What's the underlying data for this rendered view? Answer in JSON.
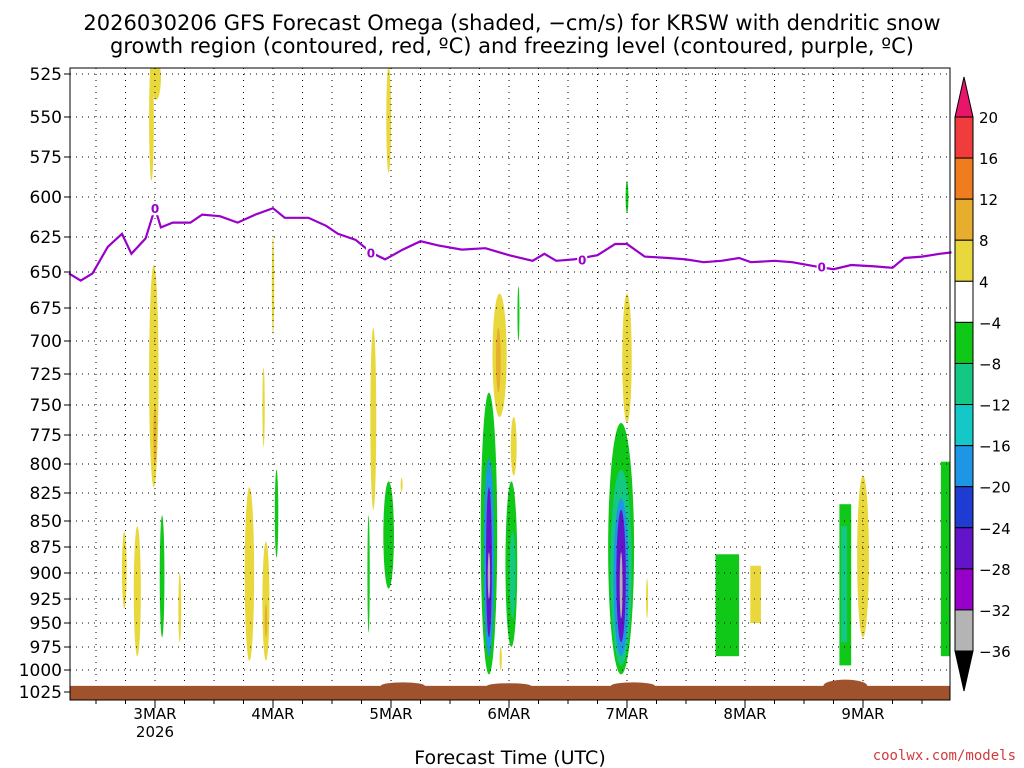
{
  "chart_data": {
    "type": "heatmap",
    "title": "2026030206 GFS Forecast Omega (shaded, −cm/s) for KRSW with dendritic snow",
    "title_line2": "growth region (contoured, red, ºC) and freezing level (contoured, purple, ºC)",
    "xlabel": "Forecast Time (UTC)",
    "credit": "coolwx.com/models",
    "x_range": [
      2.25,
      9.75
    ],
    "x_ticks": [
      {
        "value": 3,
        "label": "3MAR",
        "sublabel": "2026"
      },
      {
        "value": 4,
        "label": "4MAR",
        "sublabel": ""
      },
      {
        "value": 5,
        "label": "5MAR",
        "sublabel": ""
      },
      {
        "value": 6,
        "label": "6MAR",
        "sublabel": ""
      },
      {
        "value": 7,
        "label": "7MAR",
        "sublabel": ""
      },
      {
        "value": 8,
        "label": "8MAR",
        "sublabel": ""
      },
      {
        "value": 9,
        "label": "9MAR",
        "sublabel": ""
      }
    ],
    "y_ticks": [
      "525",
      "550",
      "575",
      "600",
      "625",
      "650",
      "675",
      "700",
      "725",
      "750",
      "775",
      "800",
      "825",
      "850",
      "875",
      "900",
      "925",
      "950",
      "975",
      "1000",
      "1025"
    ],
    "y_values": [
      525,
      550,
      575,
      600,
      625,
      650,
      675,
      700,
      725,
      750,
      775,
      800,
      825,
      850,
      875,
      900,
      925,
      950,
      975,
      1000,
      1025
    ],
    "colorbar": {
      "levels": [
        {
          "label": "20",
          "color": "#e8156b"
        },
        {
          "label": "16",
          "color": "#f03c3c"
        },
        {
          "label": "12",
          "color": "#f07c20"
        },
        {
          "label": "8",
          "color": "#e6ae2c"
        },
        {
          "label": "4",
          "color": "#e8d83c"
        },
        {
          "label": "−4",
          "color": "#ffffff"
        },
        {
          "label": "−8",
          "color": "#10c818"
        },
        {
          "label": "−12",
          "color": "#14c884"
        },
        {
          "label": "−16",
          "color": "#14c8c8"
        },
        {
          "label": "−20",
          "color": "#1e96e6"
        },
        {
          "label": "−24",
          "color": "#1e3cd2"
        },
        {
          "label": "−28",
          "color": "#6414c8"
        },
        {
          "label": "−32",
          "color": "#9600c8"
        },
        {
          "label": "−36",
          "color": "#b4b4b4"
        }
      ],
      "bottom_color": "#000000"
    },
    "freezing_level_label": "0",
    "freezing_level": [
      [
        2.27,
        651
      ],
      [
        2.37,
        656
      ],
      [
        2.47,
        651
      ],
      [
        2.6,
        632
      ],
      [
        2.72,
        623
      ],
      [
        2.8,
        637
      ],
      [
        2.92,
        626
      ],
      [
        3.0,
        607
      ],
      [
        3.05,
        619
      ],
      [
        3.15,
        616
      ],
      [
        3.3,
        616
      ],
      [
        3.4,
        611
      ],
      [
        3.55,
        612
      ],
      [
        3.7,
        616
      ],
      [
        3.85,
        611
      ],
      [
        4.0,
        607
      ],
      [
        4.1,
        613
      ],
      [
        4.3,
        613
      ],
      [
        4.45,
        618
      ],
      [
        4.55,
        623
      ],
      [
        4.7,
        627
      ],
      [
        4.83,
        636
      ],
      [
        4.95,
        641
      ],
      [
        5.1,
        634
      ],
      [
        5.25,
        628
      ],
      [
        5.4,
        631
      ],
      [
        5.6,
        634
      ],
      [
        5.8,
        633
      ],
      [
        6.0,
        638
      ],
      [
        6.2,
        642
      ],
      [
        6.3,
        637
      ],
      [
        6.4,
        642
      ],
      [
        6.55,
        641
      ],
      [
        6.75,
        638
      ],
      [
        6.9,
        630
      ],
      [
        7.0,
        630
      ],
      [
        7.15,
        639
      ],
      [
        7.35,
        640
      ],
      [
        7.5,
        641
      ],
      [
        7.65,
        643
      ],
      [
        7.8,
        642
      ],
      [
        7.95,
        640
      ],
      [
        8.05,
        643
      ],
      [
        8.25,
        642
      ],
      [
        8.4,
        643
      ],
      [
        8.6,
        646
      ],
      [
        8.75,
        648
      ],
      [
        8.9,
        645
      ],
      [
        9.1,
        646
      ],
      [
        9.25,
        647
      ],
      [
        9.35,
        640
      ],
      [
        9.5,
        639
      ],
      [
        9.65,
        637
      ],
      [
        9.75,
        636
      ]
    ],
    "omega_regions": [
      {
        "level": 4,
        "x_center": 2.97,
        "x_halfwidth": 0.02,
        "p_top": 515,
        "p_bottom": 590
      },
      {
        "level": 4,
        "x_center": 3.01,
        "x_halfwidth": 0.04,
        "p_top": 515,
        "p_bottom": 540
      },
      {
        "level": 4,
        "x_center": 2.99,
        "x_halfwidth": 0.04,
        "p_top": 645,
        "p_bottom": 820
      },
      {
        "level": 8,
        "x_center": 3.0,
        "x_halfwidth": 0.015,
        "p_top": 750,
        "p_bottom": 800
      },
      {
        "level": 4,
        "x_center": 2.74,
        "x_halfwidth": 0.02,
        "p_top": 860,
        "p_bottom": 935
      },
      {
        "level": 4,
        "x_center": 2.85,
        "x_halfwidth": 0.03,
        "p_top": 855,
        "p_bottom": 985
      },
      {
        "level": -8,
        "x_center": 3.06,
        "x_halfwidth": 0.02,
        "p_top": 845,
        "p_bottom": 965
      },
      {
        "level": 4,
        "x_center": 3.21,
        "x_halfwidth": 0.012,
        "p_top": 900,
        "p_bottom": 970
      },
      {
        "level": 4,
        "x_center": 3.8,
        "x_halfwidth": 0.04,
        "p_top": 820,
        "p_bottom": 990
      },
      {
        "level": 4,
        "x_center": 3.94,
        "x_halfwidth": 0.03,
        "p_top": 870,
        "p_bottom": 990
      },
      {
        "level": 8,
        "x_center": 3.94,
        "x_halfwidth": 0.01,
        "p_top": 930,
        "p_bottom": 965
      },
      {
        "level": -8,
        "x_center": 4.03,
        "x_halfwidth": 0.015,
        "p_top": 805,
        "p_bottom": 885
      },
      {
        "level": 4,
        "x_center": 4.0,
        "x_halfwidth": 0.01,
        "p_top": 625,
        "p_bottom": 695
      },
      {
        "level": 4,
        "x_center": 3.92,
        "x_halfwidth": 0.01,
        "p_top": 720,
        "p_bottom": 785
      },
      {
        "level": 4,
        "x_center": 4.98,
        "x_halfwidth": 0.02,
        "p_top": 520,
        "p_bottom": 585
      },
      {
        "level": 4,
        "x_center": 4.85,
        "x_halfwidth": 0.025,
        "p_top": 690,
        "p_bottom": 840
      },
      {
        "level": -8,
        "x_center": 4.81,
        "x_halfwidth": 0.01,
        "p_top": 845,
        "p_bottom": 960
      },
      {
        "level": -8,
        "x_center": 4.98,
        "x_halfwidth": 0.045,
        "p_top": 815,
        "p_bottom": 915
      },
      {
        "level": 4,
        "x_center": 5.09,
        "x_halfwidth": 0.006,
        "p_top": 812,
        "p_bottom": 824
      },
      {
        "level": 4,
        "x_center": 5.92,
        "x_halfwidth": 0.06,
        "p_top": 665,
        "p_bottom": 760
      },
      {
        "level": 8,
        "x_center": 5.91,
        "x_halfwidth": 0.02,
        "p_top": 690,
        "p_bottom": 740
      },
      {
        "level": 4,
        "x_center": 6.04,
        "x_halfwidth": 0.025,
        "p_top": 760,
        "p_bottom": 810
      },
      {
        "level": -8,
        "x_center": 5.83,
        "x_halfwidth": 0.07,
        "p_top": 740,
        "p_bottom": 1005
      },
      {
        "level": -20,
        "x_center": 5.83,
        "x_halfwidth": 0.045,
        "p_top": 795,
        "p_bottom": 985
      },
      {
        "level": -28,
        "x_center": 5.83,
        "x_halfwidth": 0.025,
        "p_top": 820,
        "p_bottom": 965
      },
      {
        "level": -36,
        "x_center": 5.83,
        "x_halfwidth": 0.01,
        "p_top": 880,
        "p_bottom": 925
      },
      {
        "level": -8,
        "x_center": 6.02,
        "x_halfwidth": 0.05,
        "p_top": 815,
        "p_bottom": 975
      },
      {
        "level": -12,
        "x_center": 6.03,
        "x_halfwidth": 0.025,
        "p_top": 860,
        "p_bottom": 945
      },
      {
        "level": -8,
        "x_center": 6.08,
        "x_halfwidth": 0.008,
        "p_top": 660,
        "p_bottom": 700
      },
      {
        "level": 4,
        "x_center": 5.93,
        "x_halfwidth": 0.01,
        "p_top": 975,
        "p_bottom": 1000
      },
      {
        "level": -8,
        "x_center": 7.0,
        "x_halfwidth": 0.012,
        "p_top": 590,
        "p_bottom": 610
      },
      {
        "level": 4,
        "x_center": 7.0,
        "x_halfwidth": 0.04,
        "p_top": 665,
        "p_bottom": 765
      },
      {
        "level": -8,
        "x_center": 6.95,
        "x_halfwidth": 0.11,
        "p_top": 765,
        "p_bottom": 1005
      },
      {
        "level": -12,
        "x_center": 6.95,
        "x_halfwidth": 0.09,
        "p_top": 805,
        "p_bottom": 995
      },
      {
        "level": -20,
        "x_center": 6.95,
        "x_halfwidth": 0.065,
        "p_top": 830,
        "p_bottom": 985
      },
      {
        "level": -28,
        "x_center": 6.95,
        "x_halfwidth": 0.04,
        "p_top": 840,
        "p_bottom": 970
      },
      {
        "level": -36,
        "x_center": 6.95,
        "x_halfwidth": 0.012,
        "p_top": 880,
        "p_bottom": 945
      },
      {
        "level": 4,
        "x_center": 7.17,
        "x_halfwidth": 0.006,
        "p_top": 905,
        "p_bottom": 945
      },
      {
        "level": -8,
        "x_center": 7.85,
        "x_halfwidth": 0.1,
        "p_top": 882,
        "p_bottom": 985,
        "rect": true
      },
      {
        "level": 4,
        "x_center": 8.09,
        "x_halfwidth": 0.045,
        "p_top": 893,
        "p_bottom": 950,
        "rect": true
      },
      {
        "level": -8,
        "x_center": 8.85,
        "x_halfwidth": 0.05,
        "p_top": 835,
        "p_bottom": 995,
        "rect": true
      },
      {
        "level": -12,
        "x_center": 8.84,
        "x_halfwidth": 0.025,
        "p_top": 855,
        "p_bottom": 970,
        "rect": true
      },
      {
        "level": 4,
        "x_center": 9.0,
        "x_halfwidth": 0.05,
        "p_top": 810,
        "p_bottom": 965
      },
      {
        "level": -8,
        "x_center": 9.7,
        "x_halfwidth": 0.04,
        "p_top": 798,
        "p_bottom": 985,
        "rect": true
      }
    ],
    "ground_color": "#a0522d"
  }
}
